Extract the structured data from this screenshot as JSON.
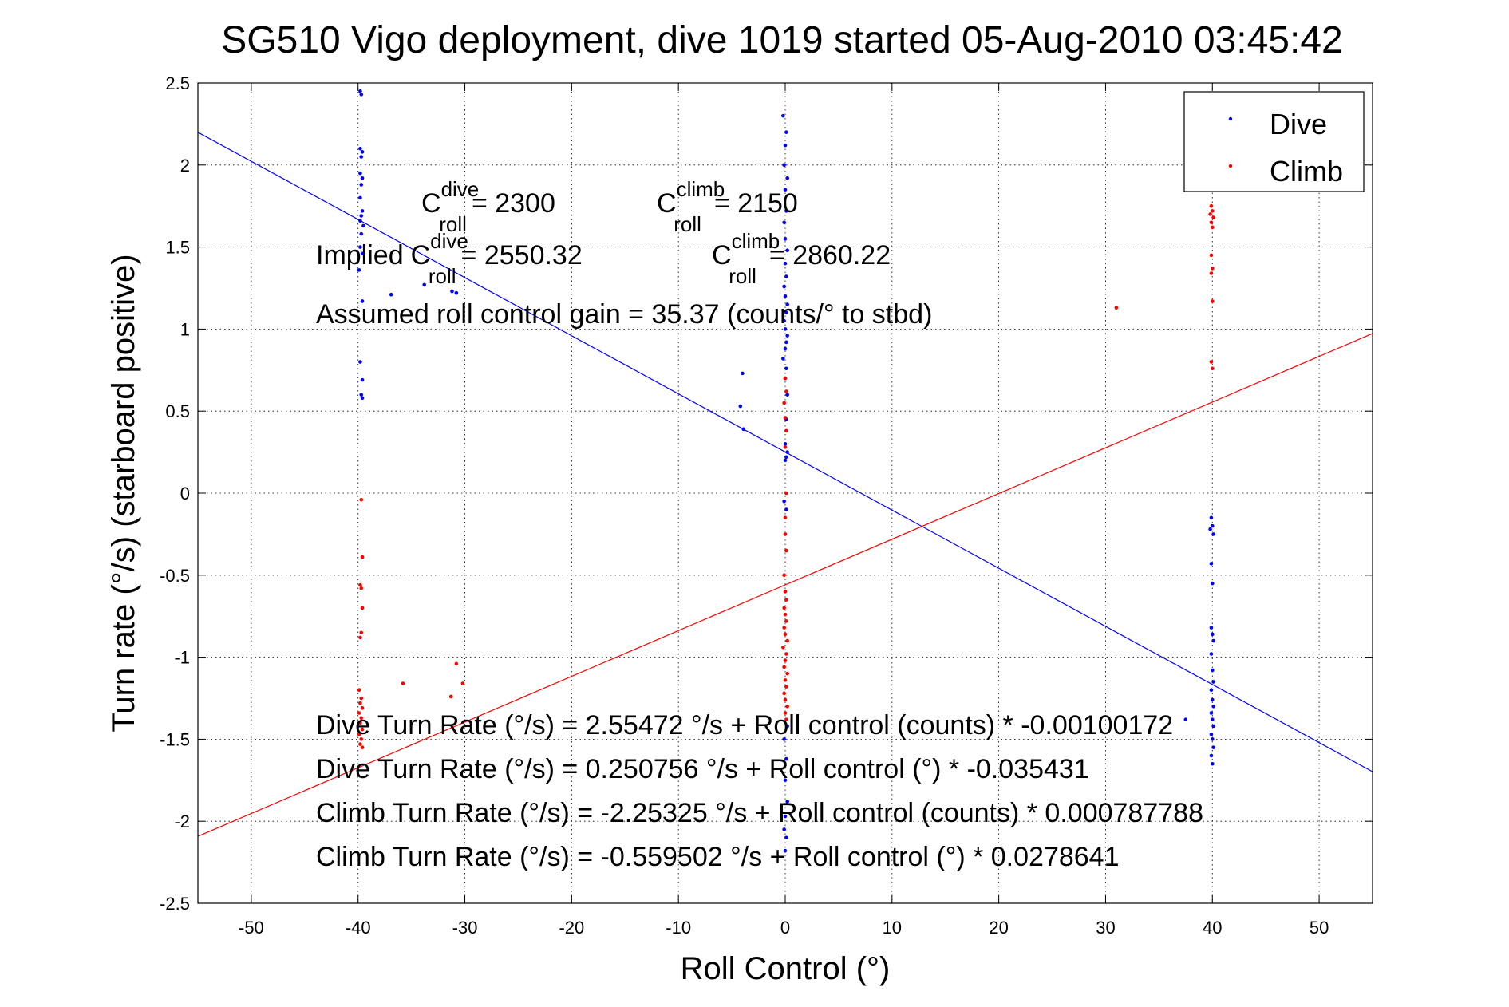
{
  "chart_data": {
    "type": "scatter",
    "title": "SG510 Vigo deployment, dive 1019 started 05-Aug-2010 03:45:42",
    "xlabel": "Roll Control (°)",
    "ylabel": "Turn rate (°/s)  (starboard positive)",
    "xlim": [
      -55,
      55
    ],
    "ylim": [
      -2.5,
      2.5
    ],
    "xticks": [
      -50,
      -40,
      -30,
      -20,
      -10,
      0,
      10,
      20,
      30,
      40,
      50
    ],
    "yticks": [
      -2.5,
      -2,
      -1.5,
      -1,
      -0.5,
      0,
      0.5,
      1,
      1.5,
      2,
      2.5
    ],
    "xtick_labels": [
      "-50",
      "-40",
      "-30",
      "-20",
      "-10",
      "0",
      "10",
      "20",
      "30",
      "40",
      "50"
    ],
    "ytick_labels": [
      "-2.5",
      "-2",
      "-1.5",
      "-1",
      "-0.5",
      "0",
      "0.5",
      "1",
      "1.5",
      "2",
      "2.5"
    ],
    "grid": true,
    "legend_position": "top-right",
    "series": [
      {
        "name": "Dive",
        "color": "#0000ff",
        "points": [
          [
            -39.8,
            2.45
          ],
          [
            -39.7,
            2.43
          ],
          [
            -39.8,
            2.1
          ],
          [
            -39.6,
            2.08
          ],
          [
            -39.7,
            2.05
          ],
          [
            -39.8,
            1.95
          ],
          [
            -39.6,
            1.92
          ],
          [
            -39.7,
            1.88
          ],
          [
            -39.8,
            1.8
          ],
          [
            -39.6,
            1.72
          ],
          [
            -39.7,
            1.69
          ],
          [
            -39.8,
            1.66
          ],
          [
            -39.5,
            1.63
          ],
          [
            -39.7,
            1.58
          ],
          [
            -39.8,
            1.5
          ],
          [
            -39.6,
            1.46
          ],
          [
            -39.9,
            1.36
          ],
          [
            -39.6,
            1.17
          ],
          [
            -36.9,
            1.21
          ],
          [
            -33.8,
            1.27
          ],
          [
            -31.2,
            1.23
          ],
          [
            -30.8,
            1.22
          ],
          [
            -39.8,
            0.8
          ],
          [
            -39.6,
            0.69
          ],
          [
            -39.7,
            0.6
          ],
          [
            -39.6,
            0.58
          ],
          [
            -4.0,
            0.73
          ],
          [
            -4.2,
            0.53
          ],
          [
            -3.9,
            0.39
          ],
          [
            -0.2,
            2.3
          ],
          [
            0.1,
            2.2
          ],
          [
            0.0,
            2.12
          ],
          [
            -0.1,
            2.0
          ],
          [
            0.2,
            1.92
          ],
          [
            0.0,
            1.85
          ],
          [
            0.1,
            1.72
          ],
          [
            -0.1,
            1.65
          ],
          [
            0.0,
            1.55
          ],
          [
            0.2,
            1.48
          ],
          [
            0.0,
            1.4
          ],
          [
            0.1,
            1.32
          ],
          [
            -0.1,
            1.26
          ],
          [
            0.0,
            1.2
          ],
          [
            0.2,
            1.15
          ],
          [
            0.1,
            1.1
          ],
          [
            -0.1,
            1.05
          ],
          [
            0.0,
            1.0
          ],
          [
            0.2,
            0.96
          ],
          [
            0.1,
            0.92
          ],
          [
            0.0,
            0.88
          ],
          [
            -0.2,
            0.82
          ],
          [
            0.1,
            0.76
          ],
          [
            0.0,
            0.7
          ],
          [
            0.2,
            0.6
          ],
          [
            0.1,
            0.45
          ],
          [
            0.0,
            0.3
          ],
          [
            0.2,
            0.25
          ],
          [
            0.1,
            0.22
          ],
          [
            0.0,
            0.2
          ],
          [
            -0.1,
            -0.05
          ],
          [
            0.1,
            -0.1
          ],
          [
            0.2,
            -1.42
          ],
          [
            -0.1,
            -1.5
          ],
          [
            0.1,
            -1.62
          ],
          [
            0.0,
            -1.75
          ],
          [
            0.2,
            -1.88
          ],
          [
            0.0,
            -1.97
          ],
          [
            -0.1,
            -2.05
          ],
          [
            0.1,
            -2.1
          ],
          [
            0.0,
            -2.18
          ],
          [
            39.9,
            -0.15
          ],
          [
            40.0,
            -0.2
          ],
          [
            39.8,
            -0.22
          ],
          [
            40.1,
            -0.25
          ],
          [
            39.9,
            -0.43
          ],
          [
            40.0,
            -0.55
          ],
          [
            39.9,
            -0.82
          ],
          [
            40.0,
            -0.86
          ],
          [
            40.1,
            -0.9
          ],
          [
            39.9,
            -0.98
          ],
          [
            40.0,
            -1.08
          ],
          [
            40.1,
            -1.15
          ],
          [
            39.9,
            -1.2
          ],
          [
            40.0,
            -1.26
          ],
          [
            40.1,
            -1.3
          ],
          [
            39.9,
            -1.34
          ],
          [
            40.0,
            -1.38
          ],
          [
            40.1,
            -1.42
          ],
          [
            39.9,
            -1.47
          ],
          [
            40.0,
            -1.5
          ],
          [
            40.1,
            -1.55
          ],
          [
            39.9,
            -1.6
          ],
          [
            40.0,
            -1.65
          ],
          [
            37.5,
            -1.38
          ]
        ],
        "fit": {
          "intercept": 0.250756,
          "slope": -0.035431
        }
      },
      {
        "name": "Climb",
        "color": "#ff0000",
        "points": [
          [
            -39.7,
            -0.04
          ],
          [
            -39.6,
            -0.39
          ],
          [
            -39.8,
            -0.56
          ],
          [
            -39.7,
            -0.58
          ],
          [
            -39.6,
            -0.7
          ],
          [
            -39.7,
            -0.85
          ],
          [
            -39.8,
            -0.88
          ],
          [
            -39.9,
            -1.2
          ],
          [
            -39.7,
            -1.25
          ],
          [
            -39.8,
            -1.28
          ],
          [
            -39.6,
            -1.31
          ],
          [
            -39.9,
            -1.34
          ],
          [
            -39.7,
            -1.37
          ],
          [
            -39.8,
            -1.4
          ],
          [
            -39.6,
            -1.44
          ],
          [
            -39.9,
            -1.47
          ],
          [
            -39.7,
            -1.5
          ],
          [
            -39.8,
            -1.53
          ],
          [
            -39.6,
            -1.55
          ],
          [
            -35.8,
            -1.16
          ],
          [
            -31.3,
            -1.24
          ],
          [
            -30.8,
            -1.04
          ],
          [
            -30.2,
            -1.16
          ],
          [
            0.0,
            0.7
          ],
          [
            0.1,
            0.62
          ],
          [
            -0.1,
            0.55
          ],
          [
            0.0,
            0.46
          ],
          [
            0.1,
            0.38
          ],
          [
            0.0,
            0.28
          ],
          [
            0.1,
            0.0
          ],
          [
            0.0,
            -0.15
          ],
          [
            0.0,
            -0.25
          ],
          [
            0.1,
            -0.35
          ],
          [
            -0.1,
            -0.5
          ],
          [
            0.0,
            -0.6
          ],
          [
            0.1,
            -0.65
          ],
          [
            -0.1,
            -0.7
          ],
          [
            0.0,
            -0.74
          ],
          [
            0.1,
            -0.78
          ],
          [
            -0.1,
            -0.82
          ],
          [
            0.0,
            -0.86
          ],
          [
            0.2,
            -0.9
          ],
          [
            -0.2,
            -0.94
          ],
          [
            0.1,
            -0.98
          ],
          [
            0.0,
            -1.02
          ],
          [
            -0.1,
            -1.06
          ],
          [
            0.2,
            -1.1
          ],
          [
            0.0,
            -1.14
          ],
          [
            0.1,
            -1.18
          ],
          [
            -0.1,
            -1.22
          ],
          [
            0.0,
            -1.26
          ],
          [
            0.2,
            -1.3
          ],
          [
            0.0,
            -1.34
          ],
          [
            0.1,
            -1.38
          ],
          [
            31.0,
            1.13
          ],
          [
            39.9,
            1.75
          ],
          [
            40.0,
            1.72
          ],
          [
            39.8,
            1.7
          ],
          [
            40.1,
            1.68
          ],
          [
            39.9,
            1.65
          ],
          [
            40.0,
            1.62
          ],
          [
            39.9,
            1.45
          ],
          [
            40.0,
            1.37
          ],
          [
            39.9,
            1.34
          ],
          [
            40.0,
            1.17
          ],
          [
            39.9,
            0.8
          ],
          [
            40.0,
            0.76
          ]
        ],
        "fit": {
          "intercept": -0.559502,
          "slope": 0.0278641
        }
      }
    ],
    "annotations": {
      "c_dive": "= 2300",
      "c_climb": "= 2150",
      "implied_prefix": "Implied",
      "implied_dive": "= 2550.32",
      "implied_climb": "= 2860.22",
      "c_letter": "C",
      "roll_sub": "roll",
      "dive_sup": "dive",
      "climb_sup": "climb",
      "gain": "Assumed roll control gain = 35.37 (counts/° to stbd)",
      "eq1": "Dive Turn Rate (°/s) = 2.55472 °/s + Roll control (counts) * -0.00100172",
      "eq2": "Dive Turn Rate (°/s) = 0.250756 °/s + Roll control (°) * -0.035431",
      "eq3": "Climb Turn Rate (°/s) = -2.25325 °/s + Roll control (counts) * 0.000787788",
      "eq4": "Climb Turn Rate (°/s) = -0.559502 °/s + Roll control (°) * 0.0278641"
    }
  }
}
